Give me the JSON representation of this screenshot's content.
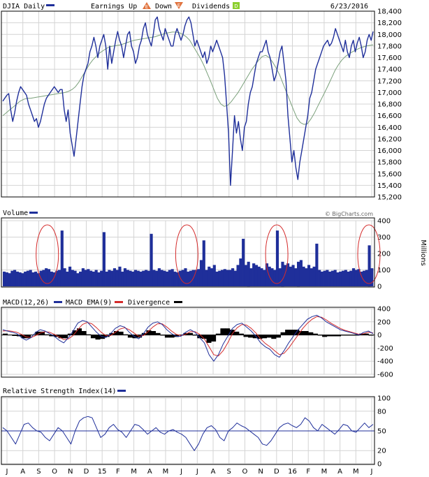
{
  "chart_data": [
    {
      "type": "line",
      "panel": "price",
      "title": "DJIA Daily",
      "date": "6/23/2016",
      "legend": {
        "earnings_up": "Earnings Up",
        "earnings_up_badge": "E",
        "down_label": "Down",
        "down_badge": "E",
        "dividends": "Dividends",
        "dividends_badge": "D"
      },
      "ylim": [
        15200,
        18400
      ],
      "y_ticks": [
        "18,400",
        "18,200",
        "18,000",
        "17,800",
        "17,600",
        "17,400",
        "17,200",
        "17,000",
        "16,800",
        "16,600",
        "16,400",
        "16,200",
        "16,000",
        "15,800",
        "15,600",
        "15,400",
        "15,200"
      ],
      "x_ticks": [
        "J",
        "A",
        "S",
        "O",
        "N",
        "D",
        "15",
        "F",
        "M",
        "A",
        "M",
        "J",
        "J",
        "A",
        "S",
        "O",
        "N",
        "D",
        "16",
        "F",
        "M",
        "A",
        "M",
        "J"
      ],
      "series": [
        {
          "kind": "price",
          "values": [
            16850,
            16900,
            16950,
            16980,
            16700,
            16500,
            16650,
            16850,
            17000,
            17100,
            17050,
            17000,
            16950,
            16800,
            16700,
            16600,
            16500,
            16550,
            16400,
            16500,
            16650,
            16800,
            16900,
            16950,
            17000,
            17050,
            17100,
            17050,
            17000,
            17050,
            17050,
            16700,
            16500,
            16700,
            16300,
            16100,
            15900,
            16200,
            16500,
            16800,
            17100,
            17300,
            17400,
            17500,
            17700,
            17800,
            17950,
            17800,
            17600,
            17800,
            17900,
            18000,
            17800,
            17400,
            17800,
            17500,
            17700,
            17900,
            18050,
            17900,
            17800,
            17600,
            17800,
            18000,
            18050,
            17800,
            17700,
            17500,
            17600,
            17800,
            17900,
            18100,
            18200,
            18000,
            17900,
            17800,
            18000,
            18250,
            18300,
            18100,
            18000,
            17900,
            18100,
            18000,
            17900,
            17800,
            17800,
            18000,
            18100,
            18000,
            17900,
            18000,
            18150,
            18250,
            18300,
            18200,
            18000,
            17800,
            17900,
            17800,
            17700,
            17600,
            17700,
            17500,
            17600,
            17800,
            17700,
            17800,
            17900,
            17800,
            17700,
            17600,
            17300,
            16800,
            16300,
            15400,
            16000,
            16600,
            16300,
            16500,
            16200,
            16000,
            16400,
            16500,
            16800,
            17000,
            17100,
            17300,
            17500,
            17600,
            17700,
            17700,
            17800,
            17900,
            17700,
            17600,
            17400,
            17200,
            17300,
            17500,
            17700,
            17800,
            17500,
            17200,
            16600,
            16200,
            15800,
            16000,
            15700,
            15500,
            15800,
            16000,
            16200,
            16400,
            16600,
            16900,
            17000,
            17200,
            17400,
            17500,
            17600,
            17700,
            17800,
            17850,
            17900,
            17800,
            17850,
            17950,
            18100,
            18000,
            17900,
            17800,
            17700,
            17900,
            17700,
            17600,
            17800,
            17900,
            17700,
            17850,
            17950,
            17800,
            17600,
            17700,
            17900,
            18000,
            17900,
            18050
          ]
        },
        {
          "kind": "moving_average",
          "values": [
            16600,
            16650,
            16700,
            16750,
            16800,
            16850,
            16880,
            16900,
            16900,
            16910,
            16920,
            16930,
            16940,
            16950,
            16960,
            16970,
            16980,
            16990,
            17000,
            17020,
            17050,
            17100,
            17180,
            17280,
            17380,
            17480,
            17560,
            17620,
            17680,
            17720,
            17760,
            17790,
            17800,
            17810,
            17820,
            17840,
            17860,
            17880,
            17900,
            17910,
            17920,
            17930,
            17940,
            17950,
            17960,
            17980,
            18000,
            18020,
            18030,
            18040,
            18040,
            18030,
            18000,
            17960,
            17900,
            17800,
            17700,
            17600,
            17480,
            17340,
            17200,
            17050,
            16900,
            16800,
            16760,
            16780,
            16840,
            16920,
            17000,
            17100,
            17200,
            17300,
            17400,
            17480,
            17560,
            17620,
            17640,
            17600,
            17520,
            17420,
            17300,
            17150,
            17000,
            16850,
            16700,
            16560,
            16480,
            16450,
            16460,
            16540,
            16640,
            16760,
            16880,
            17000,
            17120,
            17250,
            17380,
            17480,
            17560,
            17620,
            17660,
            17700,
            17730,
            17760,
            17780,
            17800,
            17810,
            17820
          ]
        }
      ]
    },
    {
      "type": "bar",
      "panel": "volume",
      "title": "Volume",
      "watermark": "© BigCharts.com",
      "ylabel": "Millions",
      "ylim": [
        0,
        400
      ],
      "y_ticks": [
        "400",
        "300",
        "200",
        "100",
        "0"
      ],
      "values": [
        90,
        85,
        80,
        95,
        100,
        90,
        85,
        80,
        90,
        95,
        100,
        85,
        90,
        80,
        95,
        100,
        110,
        105,
        90,
        85,
        95,
        100,
        340,
        110,
        90,
        120,
        100,
        95,
        80,
        90,
        110,
        100,
        105,
        95,
        90,
        100,
        85,
        95,
        330,
        90,
        100,
        95,
        110,
        100,
        120,
        90,
        110,
        100,
        95,
        90,
        100,
        95,
        90,
        95,
        100,
        95,
        320,
        100,
        95,
        110,
        100,
        95,
        90,
        100,
        105,
        90,
        85,
        95,
        100,
        110,
        90,
        95,
        100,
        100,
        105,
        160,
        280,
        100,
        120,
        110,
        130,
        90,
        95,
        100,
        105,
        100,
        100,
        110,
        95,
        130,
        170,
        290,
        130,
        150,
        110,
        140,
        130,
        120,
        110,
        100,
        140,
        120,
        110,
        100,
        340,
        110,
        150,
        130,
        140,
        120,
        130,
        110,
        150,
        160,
        120,
        110,
        130,
        110,
        120,
        260,
        100,
        90,
        95,
        100,
        90,
        95,
        100,
        85,
        90,
        95,
        100,
        90,
        95,
        110,
        100,
        105,
        90,
        95,
        100,
        250,
        110
      ],
      "annotations": [
        "circle",
        "circle",
        "circle",
        "circle"
      ]
    },
    {
      "type": "line",
      "panel": "macd",
      "title": "MACD(12,26)",
      "legend": [
        "MACD(12,26)",
        "MACD EMA(9)",
        "Divergence"
      ],
      "series_colors": {
        "macd": "#1f2f9a",
        "ema": "#d42b2b",
        "divergence": "#000000"
      },
      "ylim": [
        -600,
        400
      ],
      "y_ticks": [
        "400",
        "200",
        "0",
        "-200",
        "-400",
        "-600"
      ],
      "series": [
        {
          "name": "MACD(12,26)",
          "values": [
            80,
            60,
            40,
            20,
            -40,
            -80,
            -40,
            40,
            80,
            60,
            20,
            -20,
            -80,
            -120,
            -40,
            60,
            180,
            220,
            200,
            120,
            40,
            -20,
            -40,
            20,
            100,
            140,
            120,
            40,
            -20,
            -60,
            20,
            120,
            180,
            200,
            160,
            80,
            20,
            -20,
            -20,
            40,
            80,
            40,
            -40,
            -120,
            -300,
            -400,
            -300,
            -140,
            -20,
            100,
            160,
            180,
            120,
            60,
            -20,
            -120,
            -180,
            -220,
            -300,
            -340,
            -240,
            -120,
            -20,
            80,
            160,
            240,
            280,
            300,
            260,
            200,
            160,
            120,
            80,
            60,
            40,
            20,
            0,
            40,
            60,
            20
          ]
        },
        {
          "name": "MACD EMA(9)",
          "values": [
            60,
            65,
            55,
            40,
            10,
            -30,
            -40,
            -10,
            30,
            50,
            40,
            10,
            -30,
            -70,
            -60,
            -10,
            80,
            160,
            190,
            170,
            110,
            40,
            -10,
            -10,
            40,
            90,
            110,
            80,
            30,
            -20,
            -10,
            50,
            120,
            170,
            170,
            120,
            60,
            10,
            -10,
            10,
            50,
            50,
            10,
            -60,
            -180,
            -300,
            -320,
            -240,
            -120,
            20,
            110,
            160,
            150,
            100,
            30,
            -60,
            -130,
            -180,
            -240,
            -300,
            -280,
            -200,
            -100,
            0,
            100,
            180,
            240,
            280,
            270,
            230,
            180,
            140,
            100,
            70,
            50,
            30,
            10,
            20,
            40,
            30
          ]
        },
        {
          "name": "Divergence",
          "values": [
            20,
            -5,
            -15,
            -20,
            -50,
            -50,
            0,
            50,
            50,
            10,
            -20,
            -30,
            -50,
            -50,
            20,
            70,
            100,
            60,
            10,
            -50,
            -70,
            -60,
            -30,
            30,
            60,
            50,
            10,
            -40,
            -50,
            -40,
            30,
            70,
            60,
            30,
            -10,
            -40,
            -40,
            -30,
            -10,
            30,
            30,
            -10,
            -50,
            -60,
            -120,
            -100,
            20,
            100,
            100,
            80,
            50,
            20,
            -30,
            -40,
            -50,
            -60,
            -50,
            -40,
            -60,
            -40,
            40,
            80,
            80,
            80,
            60,
            60,
            40,
            20,
            -10,
            -30,
            -20,
            -20,
            -20,
            -10,
            -10,
            -10,
            -10,
            20,
            20,
            -10
          ]
        }
      ]
    },
    {
      "type": "line",
      "panel": "rsi",
      "title": "Relative Strength Index(14)",
      "ylim": [
        0,
        100
      ],
      "y_ticks": [
        "100",
        "80",
        "50",
        "20",
        "0"
      ],
      "series": [
        {
          "name": "Relative Strength Index(14)",
          "values": [
            55,
            50,
            40,
            30,
            45,
            60,
            62,
            55,
            50,
            48,
            40,
            35,
            45,
            55,
            50,
            40,
            30,
            50,
            65,
            70,
            72,
            70,
            55,
            40,
            45,
            55,
            60,
            52,
            48,
            40,
            50,
            60,
            58,
            52,
            45,
            50,
            55,
            48,
            45,
            50,
            52,
            48,
            45,
            40,
            30,
            20,
            30,
            45,
            55,
            58,
            52,
            40,
            35,
            50,
            55,
            62,
            58,
            55,
            50,
            45,
            40,
            30,
            28,
            35,
            45,
            55,
            60,
            62,
            58,
            55,
            60,
            70,
            65,
            55,
            50,
            60,
            55,
            50,
            45,
            52,
            60,
            58,
            50,
            48,
            55,
            62,
            55,
            60
          ]
        }
      ]
    }
  ]
}
